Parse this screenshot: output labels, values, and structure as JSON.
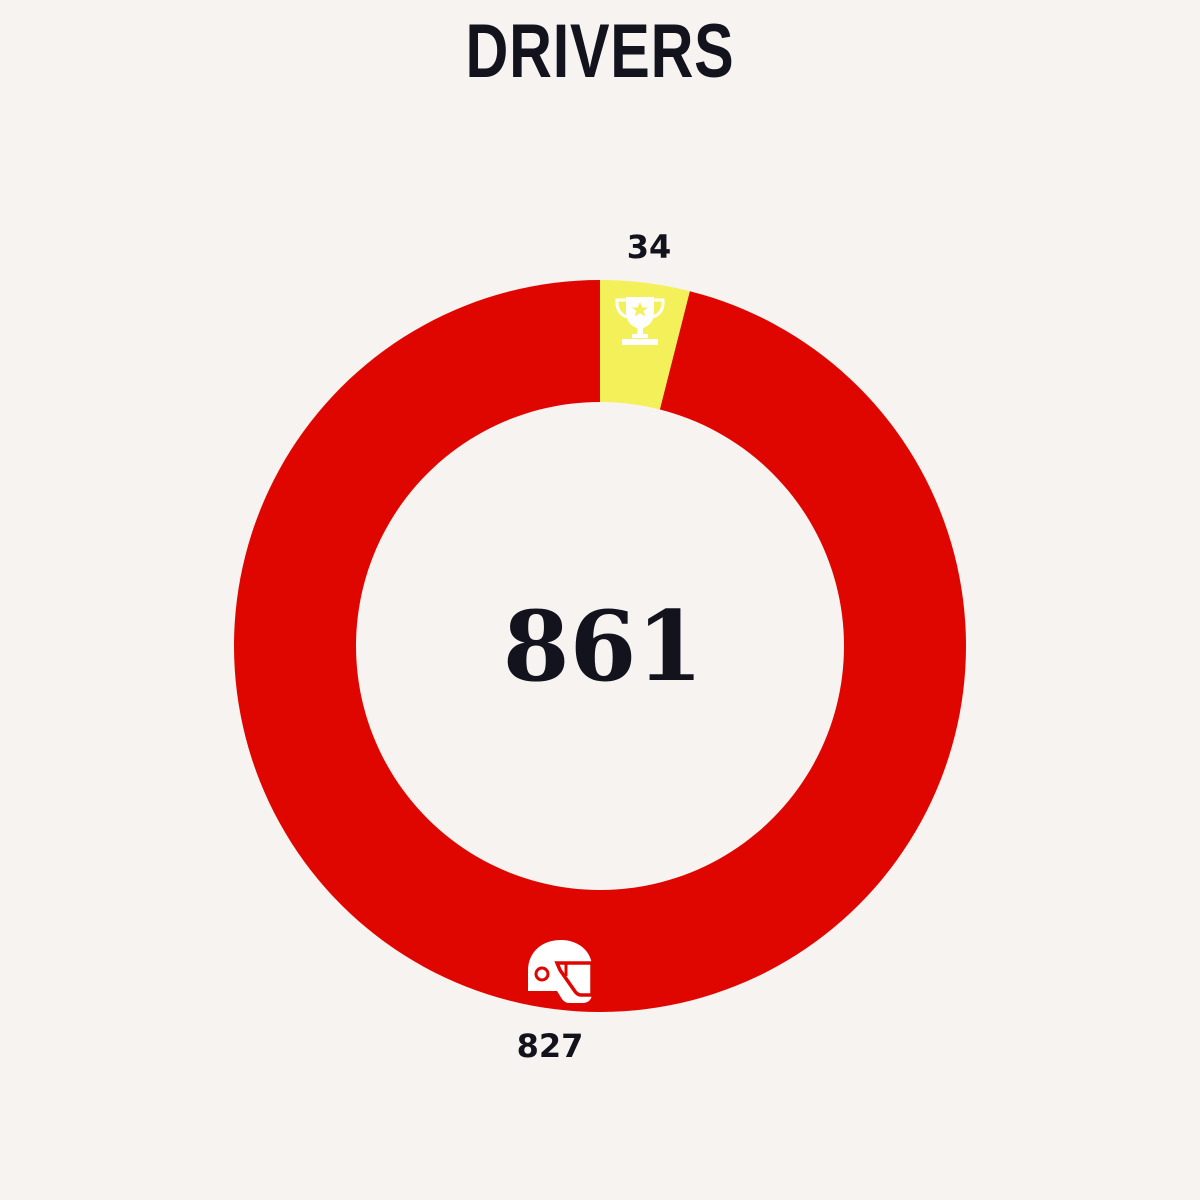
{
  "title": "DRIVERS",
  "center_total": "861",
  "colors": {
    "background": "#f7f3f0",
    "text": "#13131d",
    "winners": "#f4f05a",
    "non_winners": "#e00600",
    "icon": "#ffffff"
  },
  "chart_data": {
    "type": "pie",
    "variant": "donut",
    "title": "DRIVERS",
    "total": 861,
    "segments": [
      {
        "name": "winners",
        "value": 34,
        "label": "34",
        "color": "#f4f05a",
        "icon": "trophy-icon"
      },
      {
        "name": "non-winners",
        "value": 827,
        "label": "827",
        "color": "#e00600",
        "icon": "helmet-icon"
      }
    ]
  }
}
